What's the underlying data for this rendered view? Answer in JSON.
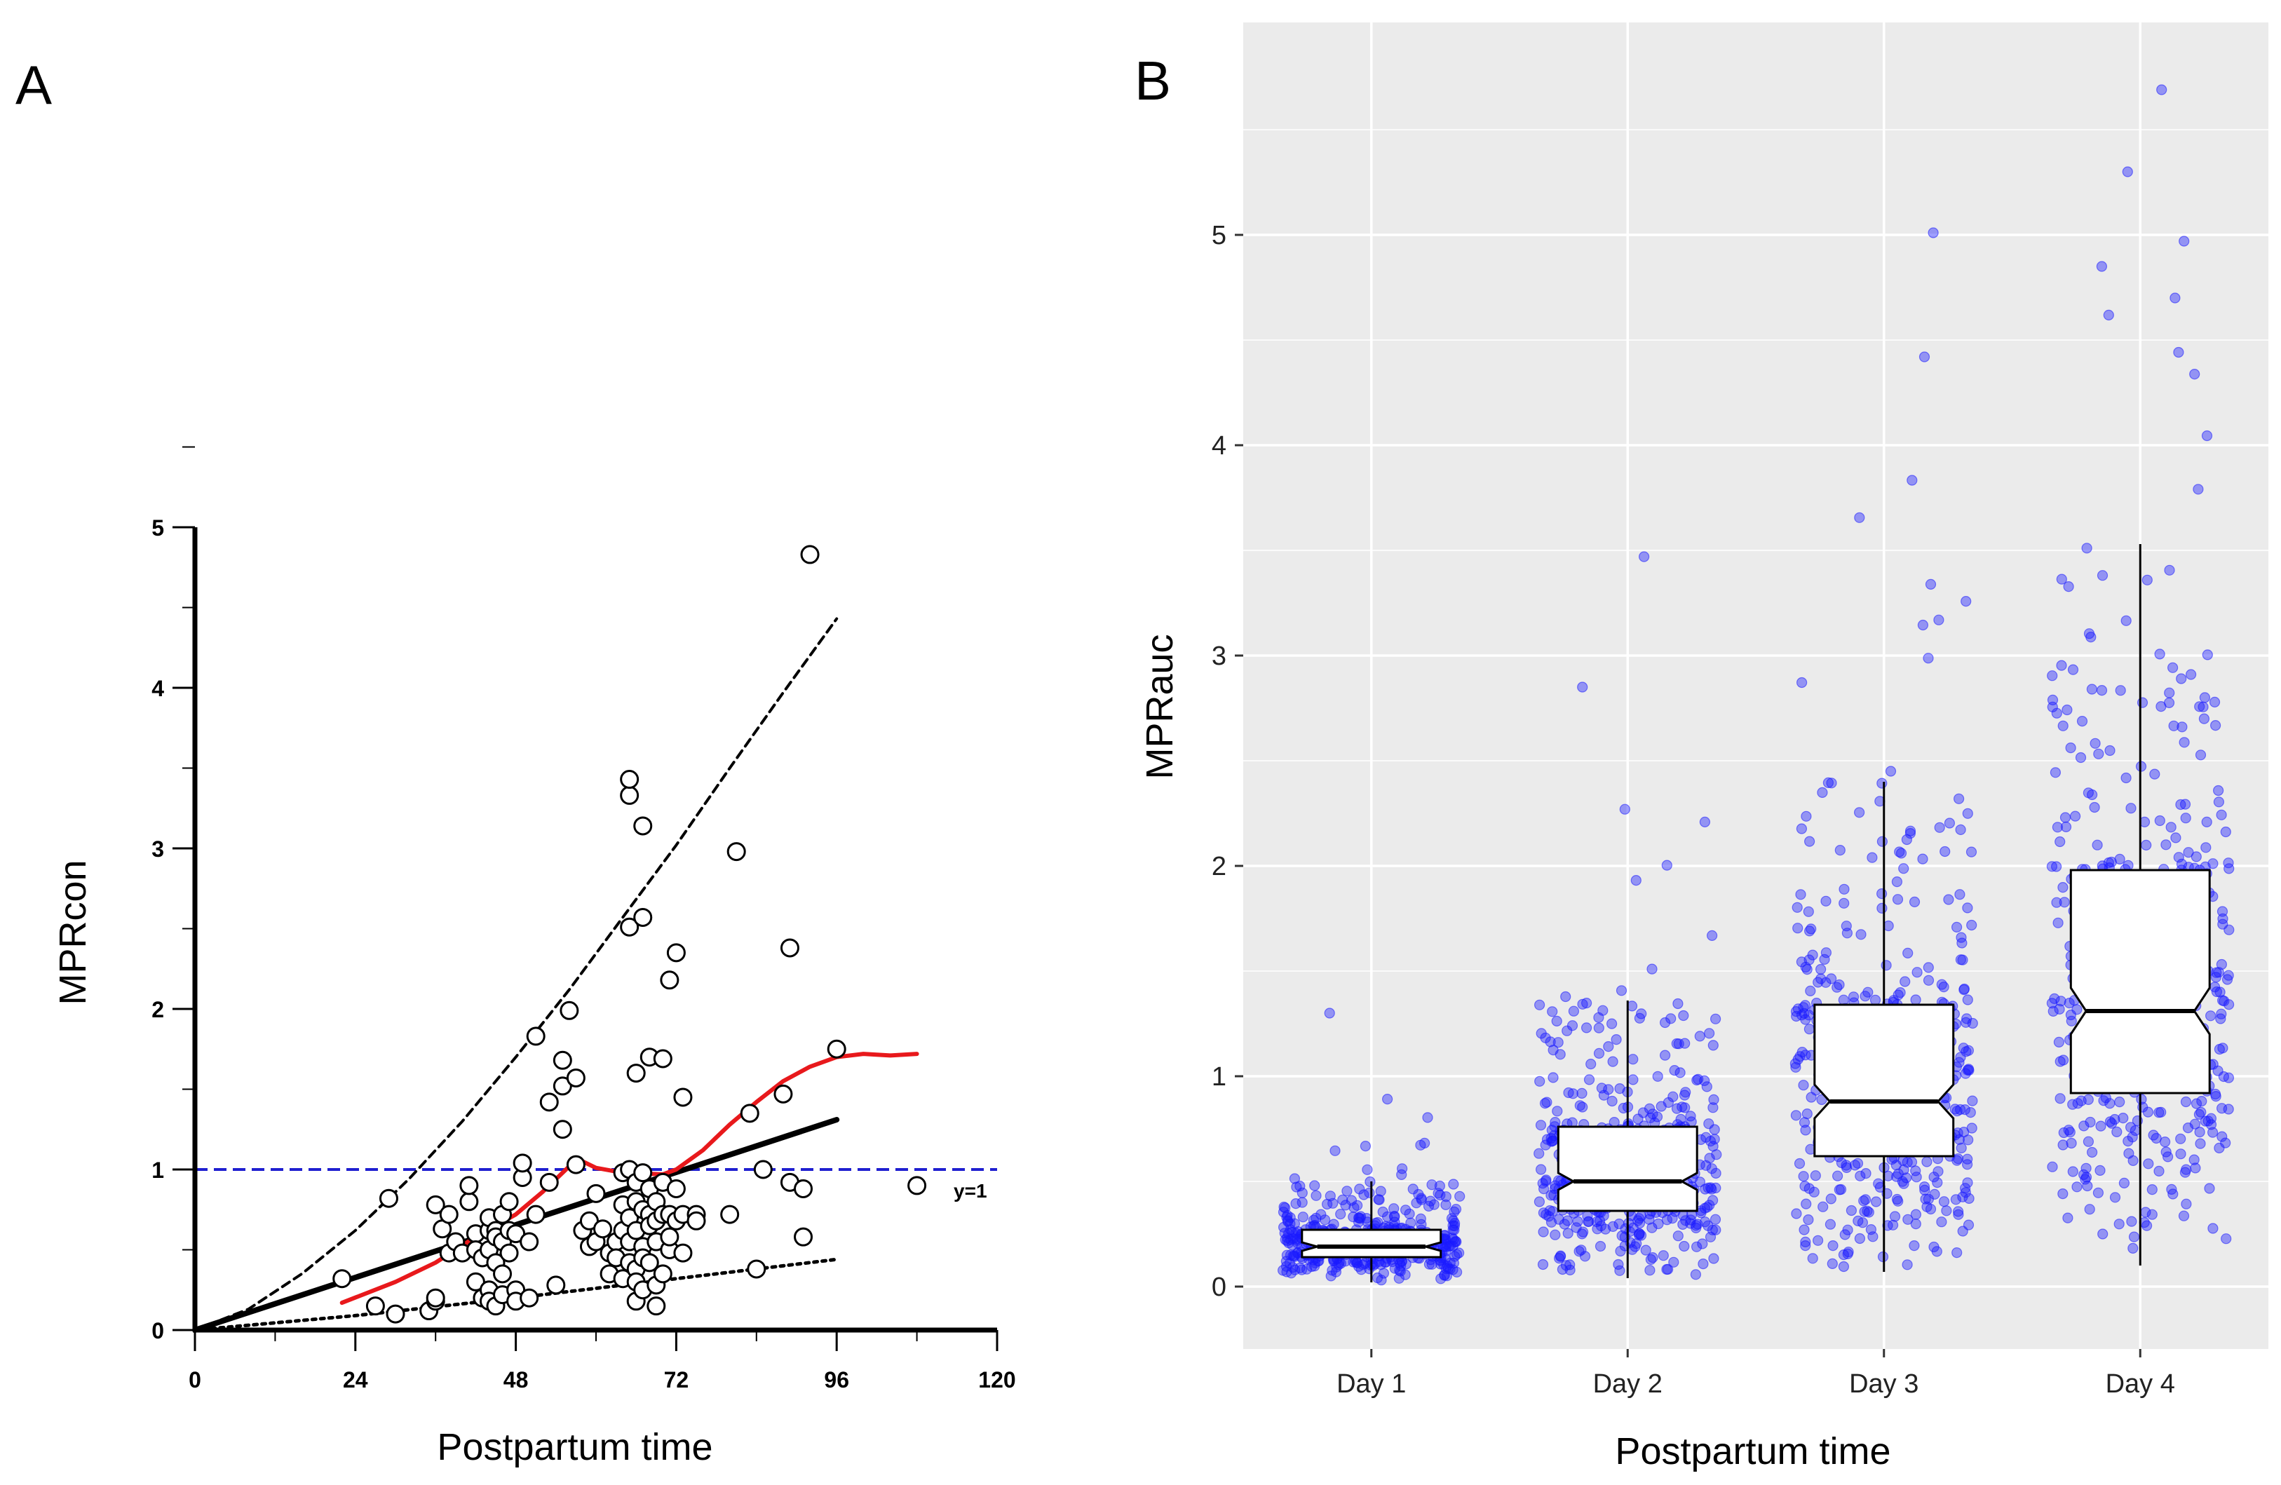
{
  "panels": {
    "a": {
      "letter": "A"
    },
    "b": {
      "letter": "B"
    }
  },
  "colors": {
    "panel_b_background": "#ebebeb",
    "jitter_points": "#1a1aff",
    "loess_line": "#e8191c",
    "reference_line": "#1f1fd0"
  },
  "chart_data": [
    {
      "id": "panel-a",
      "type": "scatter",
      "title": "",
      "xlabel": "Postpartum time",
      "ylabel": "MPRcon",
      "xlim": [
        0,
        120
      ],
      "ylim": [
        0,
        5
      ],
      "x_ticks": [
        "0",
        "24",
        "48",
        "72",
        "96",
        "120"
      ],
      "y_ticks": [
        "0",
        "1",
        "2",
        "3",
        "4",
        "5"
      ],
      "reference_line": {
        "y": 1,
        "label": "y=1",
        "style": "dashed-blue"
      },
      "points": [
        [
          22,
          0.32
        ],
        [
          27,
          0.15
        ],
        [
          29,
          0.82
        ],
        [
          30,
          0.1
        ],
        [
          35,
          0.12
        ],
        [
          36,
          0.18
        ],
        [
          36,
          0.2
        ],
        [
          36,
          0.78
        ],
        [
          37,
          0.63
        ],
        [
          38,
          0.48
        ],
        [
          38,
          0.72
        ],
        [
          39,
          0.55
        ],
        [
          40,
          0.48
        ],
        [
          41,
          0.8
        ],
        [
          41,
          0.9
        ],
        [
          42,
          0.6
        ],
        [
          42,
          0.5
        ],
        [
          42,
          0.3
        ],
        [
          43,
          0.2
        ],
        [
          43,
          0.45
        ],
        [
          44,
          0.5
        ],
        [
          44,
          0.62
        ],
        [
          44,
          0.25
        ],
        [
          44,
          0.18
        ],
        [
          44,
          0.7
        ],
        [
          45,
          0.62
        ],
        [
          45,
          0.42
        ],
        [
          45,
          0.58
        ],
        [
          45,
          0.15
        ],
        [
          46,
          0.22
        ],
        [
          46,
          0.35
        ],
        [
          46,
          0.72
        ],
        [
          46,
          0.55
        ],
        [
          47,
          0.48
        ],
        [
          47,
          0.8
        ],
        [
          47,
          0.62
        ],
        [
          48,
          0.25
        ],
        [
          48,
          0.18
        ],
        [
          48,
          0.6
        ],
        [
          49,
          0.95
        ],
        [
          49,
          1.04
        ],
        [
          50,
          0.55
        ],
        [
          50,
          0.2
        ],
        [
          51,
          1.83
        ],
        [
          51,
          0.72
        ],
        [
          53,
          0.92
        ],
        [
          53,
          1.42
        ],
        [
          54,
          0.28
        ],
        [
          55,
          1.25
        ],
        [
          55,
          1.52
        ],
        [
          55,
          1.68
        ],
        [
          56,
          1.99
        ],
        [
          57,
          1.03
        ],
        [
          57,
          1.57
        ],
        [
          58,
          0.62
        ],
        [
          59,
          0.68
        ],
        [
          59,
          0.52
        ],
        [
          60,
          0.85
        ],
        [
          60,
          0.55
        ],
        [
          61,
          0.63
        ],
        [
          62,
          0.35
        ],
        [
          62,
          0.48
        ],
        [
          63,
          0.55
        ],
        [
          63,
          0.45
        ],
        [
          64,
          0.32
        ],
        [
          64,
          0.62
        ],
        [
          64,
          0.98
        ],
        [
          64,
          0.78
        ],
        [
          65,
          0.55
        ],
        [
          65,
          0.42
        ],
        [
          65,
          0.7
        ],
        [
          65,
          1.0
        ],
        [
          65,
          3.33
        ],
        [
          65,
          3.43
        ],
        [
          65,
          2.51
        ],
        [
          66,
          0.62
        ],
        [
          66,
          0.38
        ],
        [
          66,
          0.3
        ],
        [
          66,
          0.18
        ],
        [
          66,
          0.8
        ],
        [
          66,
          0.92
        ],
        [
          66,
          1.6
        ],
        [
          67,
          0.52
        ],
        [
          67,
          0.45
        ],
        [
          67,
          0.25
        ],
        [
          67,
          0.98
        ],
        [
          67,
          0.75
        ],
        [
          67,
          3.14
        ],
        [
          67,
          2.57
        ],
        [
          68,
          0.72
        ],
        [
          68,
          0.88
        ],
        [
          68,
          0.65
        ],
        [
          68,
          0.42
        ],
        [
          68,
          1.7
        ],
        [
          69,
          0.15
        ],
        [
          69,
          0.28
        ],
        [
          69,
          0.55
        ],
        [
          69,
          0.8
        ],
        [
          69,
          0.68
        ],
        [
          70,
          0.92
        ],
        [
          70,
          0.72
        ],
        [
          70,
          0.35
        ],
        [
          70,
          1.69
        ],
        [
          71,
          0.5
        ],
        [
          71,
          0.58
        ],
        [
          71,
          0.72
        ],
        [
          71,
          2.18
        ],
        [
          72,
          0.88
        ],
        [
          72,
          0.68
        ],
        [
          72,
          2.35
        ],
        [
          73,
          0.48
        ],
        [
          73,
          0.72
        ],
        [
          73,
          1.45
        ],
        [
          75,
          0.72
        ],
        [
          75,
          0.68
        ],
        [
          80,
          0.72
        ],
        [
          81,
          2.98
        ],
        [
          83,
          1.35
        ],
        [
          84,
          0.38
        ],
        [
          85,
          1.0
        ],
        [
          88,
          1.47
        ],
        [
          89,
          0.92
        ],
        [
          89,
          2.38
        ],
        [
          91,
          0.58
        ],
        [
          91,
          0.88
        ],
        [
          92,
          4.83
        ],
        [
          96,
          1.75
        ],
        [
          108,
          0.9
        ]
      ],
      "lines": [
        {
          "name": "linear fit",
          "style": "solid-black",
          "x": [
            0,
            96
          ],
          "y": [
            0,
            1.31
          ]
        },
        {
          "name": "upper prediction bound",
          "style": "dashed-black",
          "x": [
            0,
            8,
            16,
            24,
            32,
            40,
            48,
            56,
            64,
            72,
            80,
            88,
            96
          ],
          "y": [
            0,
            0.13,
            0.35,
            0.62,
            0.94,
            1.3,
            1.7,
            2.12,
            2.57,
            3.02,
            3.5,
            3.97,
            4.43
          ]
        },
        {
          "name": "lower prediction bound",
          "style": "dotted-black",
          "x": [
            0,
            24,
            48,
            72,
            96
          ],
          "y": [
            0,
            0.09,
            0.2,
            0.32,
            0.44
          ]
        },
        {
          "name": "loess smooth",
          "style": "solid-red",
          "x": [
            22,
            30,
            36,
            42,
            48,
            52,
            56,
            58,
            60,
            64,
            70,
            72,
            76,
            80,
            84,
            88,
            92,
            96,
            100,
            104,
            108
          ],
          "y": [
            0.17,
            0.3,
            0.42,
            0.58,
            0.72,
            0.86,
            1.02,
            1.05,
            1.01,
            0.98,
            0.97,
            1.0,
            1.12,
            1.28,
            1.42,
            1.55,
            1.64,
            1.7,
            1.72,
            1.71,
            1.72
          ]
        }
      ]
    },
    {
      "id": "panel-b",
      "type": "box",
      "title": "",
      "xlabel": "Postpartum time",
      "ylabel": "MPRauc",
      "ylim": [
        -0.3,
        6.0
      ],
      "y_ticks": [
        "0",
        "1",
        "2",
        "3",
        "4",
        "5"
      ],
      "categories": [
        "Day 1",
        "Day 2",
        "Day 3",
        "Day 4"
      ],
      "boxes": [
        {
          "category": "Day 1",
          "whisker_low": 0.02,
          "q1": 0.14,
          "median": 0.19,
          "q3": 0.27,
          "whisker_high": 0.5,
          "notch_low": 0.17,
          "notch_high": 0.21
        },
        {
          "category": "Day 2",
          "whisker_low": 0.04,
          "q1": 0.36,
          "median": 0.5,
          "q3": 0.76,
          "whisker_high": 1.36,
          "notch_low": 0.46,
          "notch_high": 0.54
        },
        {
          "category": "Day 3",
          "whisker_low": 0.07,
          "q1": 0.62,
          "median": 0.88,
          "q3": 1.34,
          "whisker_high": 2.4,
          "notch_low": 0.8,
          "notch_high": 0.96
        },
        {
          "category": "Day 4",
          "whisker_low": 0.1,
          "q1": 0.92,
          "median": 1.31,
          "q3": 1.98,
          "whisker_high": 3.53,
          "notch_low": 1.2,
          "notch_high": 1.42
        }
      ],
      "notable_points": [
        {
          "category": "Day 1",
          "value": 1.3
        },
        {
          "category": "Day 2",
          "value": 3.47
        },
        {
          "category": "Day 2",
          "value": 2.85
        },
        {
          "category": "Day 3",
          "value": 5.01
        },
        {
          "category": "Day 3",
          "value": 4.42
        },
        {
          "category": "Day 4",
          "value": 5.69
        },
        {
          "category": "Day 4",
          "value": 5.3
        },
        {
          "category": "Day 4",
          "value": 4.97
        },
        {
          "category": "Day 4",
          "value": 4.85
        },
        {
          "category": "Day 4",
          "value": 4.7
        }
      ],
      "jitter_per_category": [
        {
          "category": "Day 1",
          "count": 420,
          "spread": 0.09,
          "max_extra": 0.95
        },
        {
          "category": "Day 2",
          "count": 420,
          "spread": 0.32,
          "max_extra": 2.55
        },
        {
          "category": "Day 3",
          "count": 420,
          "spread": 0.55,
          "max_extra": 4.2
        },
        {
          "category": "Day 4",
          "count": 420,
          "spread": 0.85,
          "max_extra": 4.7
        }
      ]
    }
  ]
}
